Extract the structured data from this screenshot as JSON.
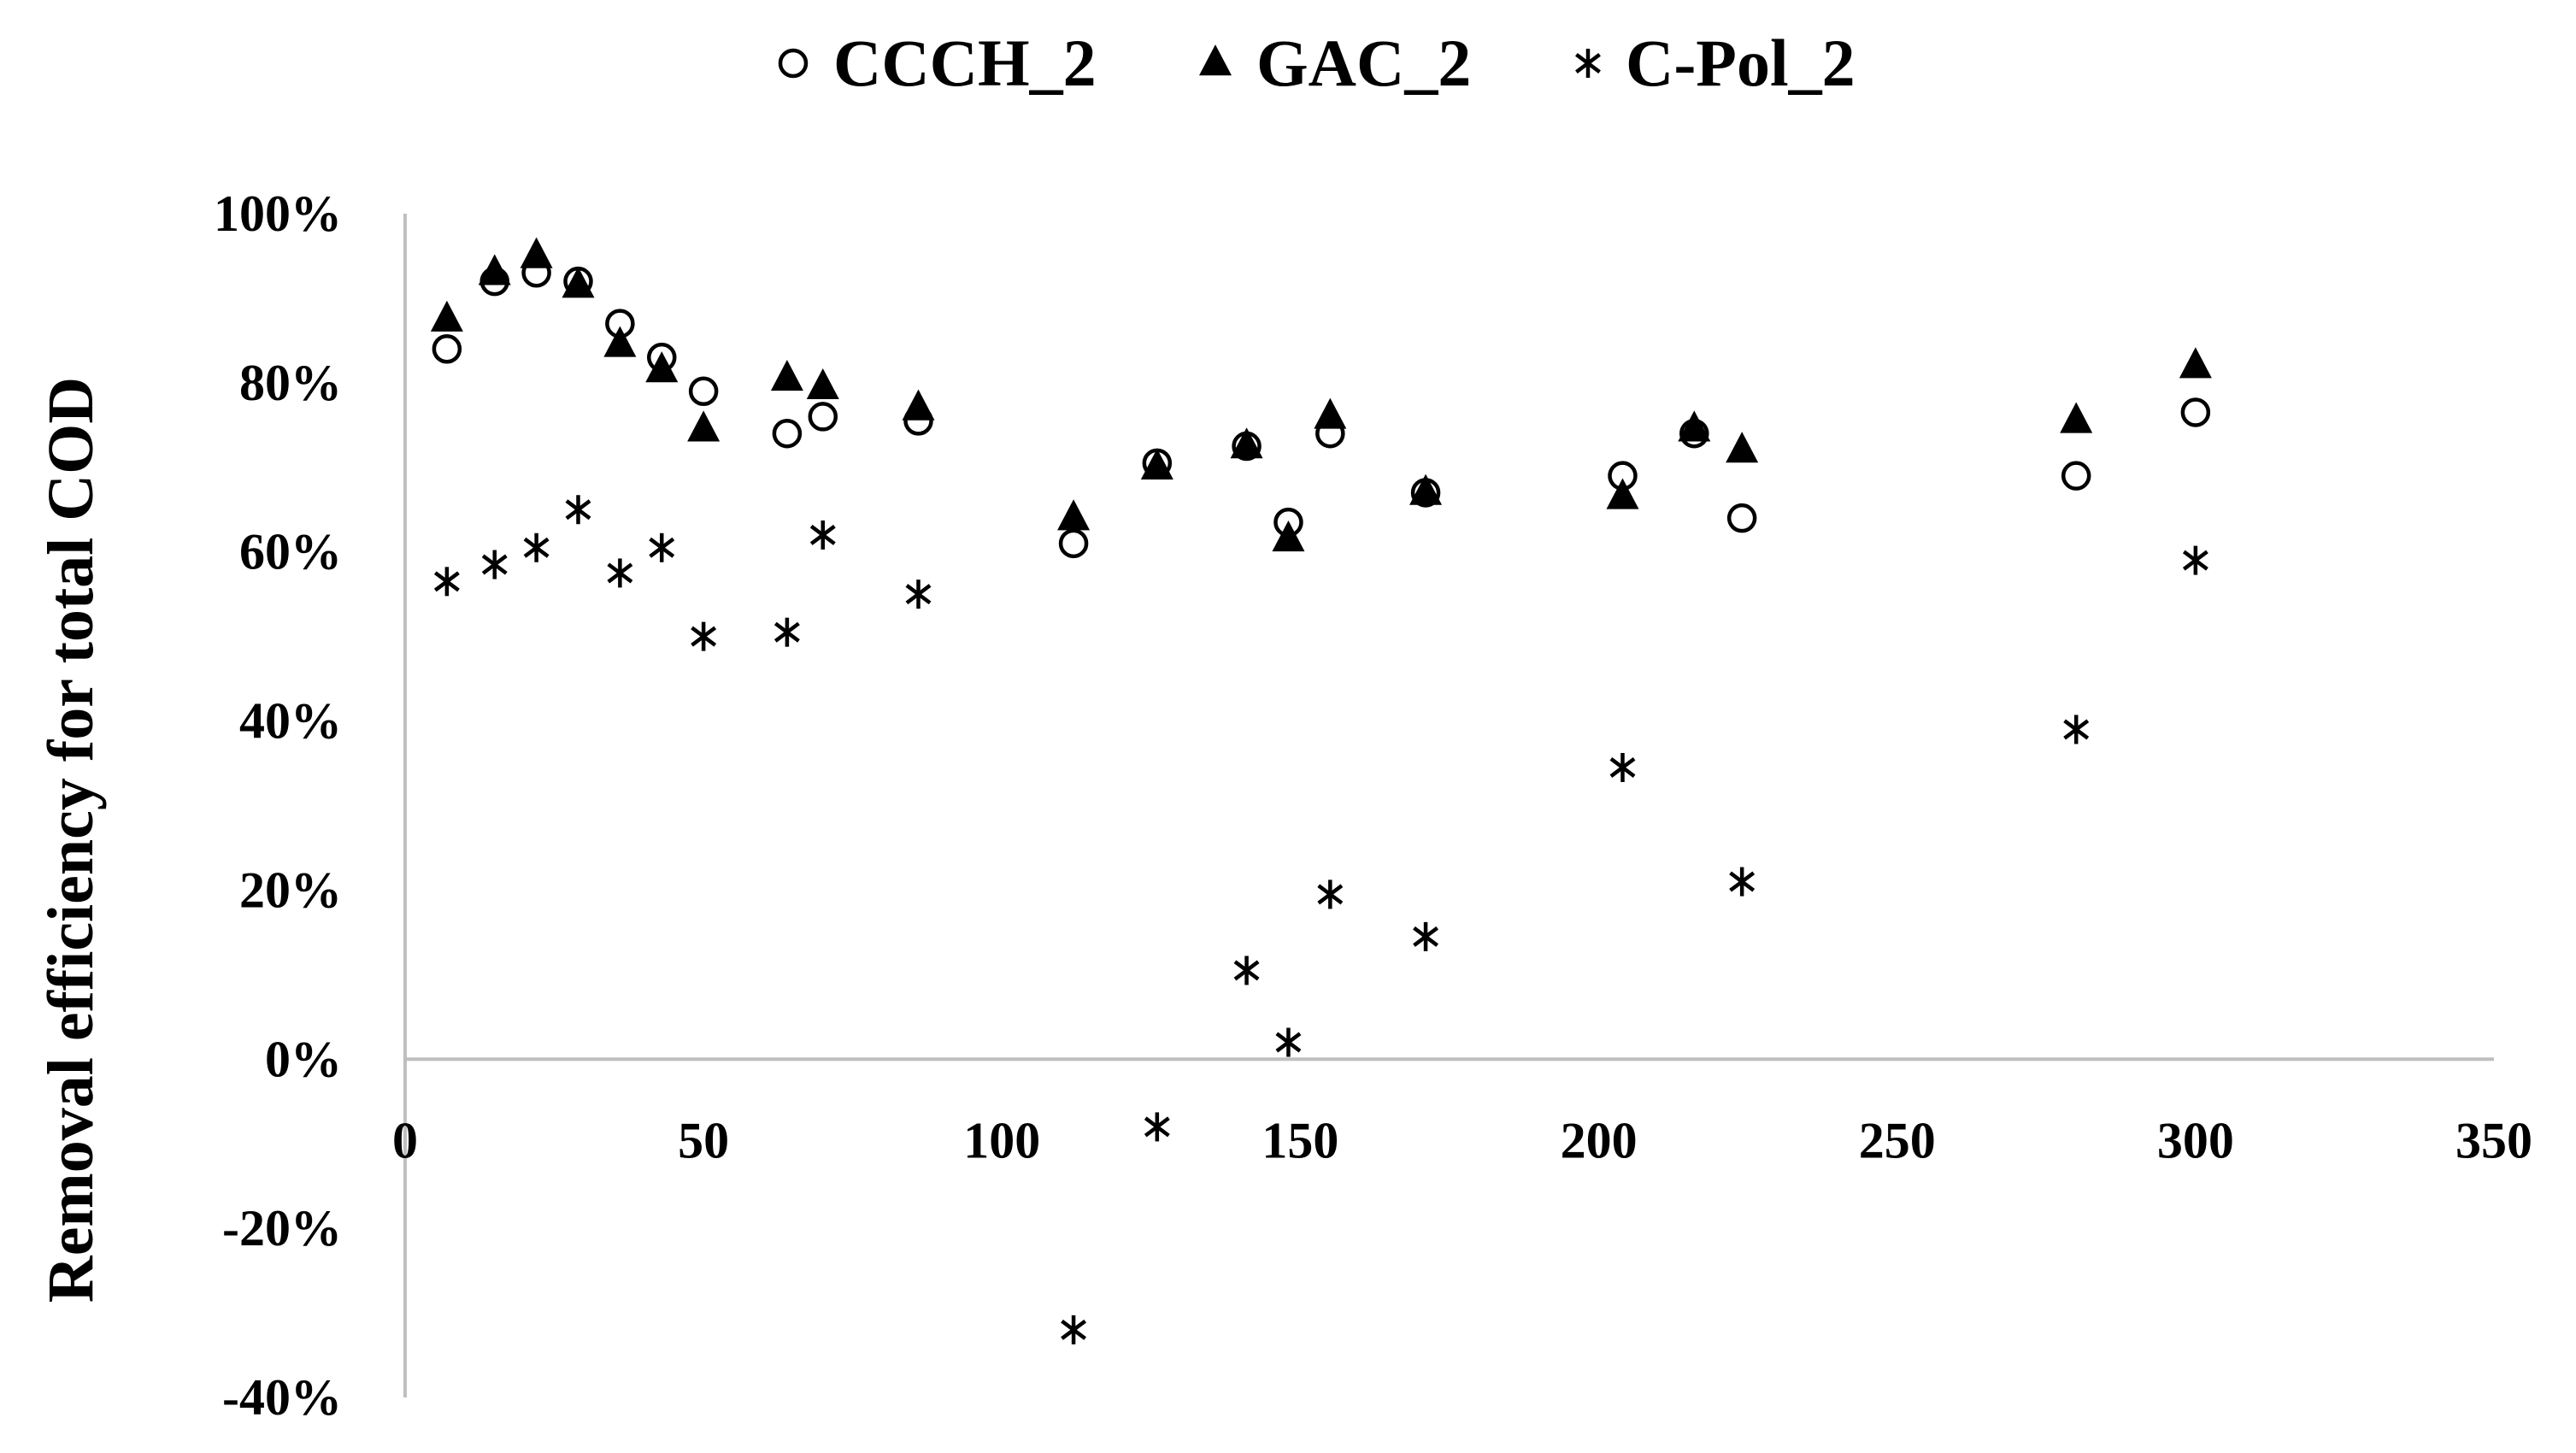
{
  "chart_data": {
    "type": "scatter",
    "title": "",
    "xlabel": "",
    "ylabel": "Removal efficiency for total COD",
    "xlim": [
      0,
      350
    ],
    "ylim": [
      -0.4,
      1.0
    ],
    "x_ticks": [
      "0",
      "50",
      "100",
      "150",
      "200",
      "250",
      "300",
      "350"
    ],
    "y_ticks": [
      "-40%",
      "-20%",
      "0%",
      "20%",
      "40%",
      "60%",
      "80%",
      "100%"
    ],
    "grid": false,
    "legend_position": "top",
    "series": [
      {
        "name": "CCCH_2",
        "marker": "open-circle",
        "points": [
          [
            7,
            0.84
          ],
          [
            15,
            0.92
          ],
          [
            22,
            0.93
          ],
          [
            29,
            0.92
          ],
          [
            36,
            0.87
          ],
          [
            43,
            0.83
          ],
          [
            50,
            0.79
          ],
          [
            64,
            0.74
          ],
          [
            70,
            0.76
          ],
          [
            86,
            0.755
          ],
          [
            112,
            0.61
          ],
          [
            126,
            0.705
          ],
          [
            141,
            0.725
          ],
          [
            148,
            0.635
          ],
          [
            155,
            0.74
          ],
          [
            171,
            0.67
          ],
          [
            204,
            0.69
          ],
          [
            216,
            0.74
          ],
          [
            224,
            0.64
          ],
          [
            280,
            0.69
          ],
          [
            300,
            0.765
          ]
        ]
      },
      {
        "name": "GAC_2",
        "marker": "filled-triangle",
        "points": [
          [
            7,
            0.875
          ],
          [
            15,
            0.93
          ],
          [
            22,
            0.95
          ],
          [
            29,
            0.915
          ],
          [
            36,
            0.845
          ],
          [
            43,
            0.815
          ],
          [
            50,
            0.745
          ],
          [
            64,
            0.805
          ],
          [
            70,
            0.795
          ],
          [
            86,
            0.77
          ],
          [
            112,
            0.64
          ],
          [
            126,
            0.7
          ],
          [
            141,
            0.725
          ],
          [
            148,
            0.615
          ],
          [
            155,
            0.76
          ],
          [
            171,
            0.67
          ],
          [
            204,
            0.665
          ],
          [
            216,
            0.745
          ],
          [
            224,
            0.72
          ],
          [
            280,
            0.755
          ],
          [
            300,
            0.82
          ]
        ]
      },
      {
        "name": "C-Pol_2",
        "marker": "asterisk",
        "points": [
          [
            7,
            0.565
          ],
          [
            15,
            0.585
          ],
          [
            22,
            0.605
          ],
          [
            29,
            0.65
          ],
          [
            36,
            0.575
          ],
          [
            43,
            0.605
          ],
          [
            50,
            0.5
          ],
          [
            64,
            0.505
          ],
          [
            70,
            0.62
          ],
          [
            86,
            0.55
          ],
          [
            112,
            -0.32
          ],
          [
            126,
            -0.08
          ],
          [
            141,
            0.105
          ],
          [
            148,
            0.02
          ],
          [
            155,
            0.195
          ],
          [
            171,
            0.145
          ],
          [
            204,
            0.345
          ],
          [
            224,
            0.21
          ],
          [
            280,
            0.39
          ],
          [
            300,
            0.59
          ]
        ]
      }
    ]
  }
}
